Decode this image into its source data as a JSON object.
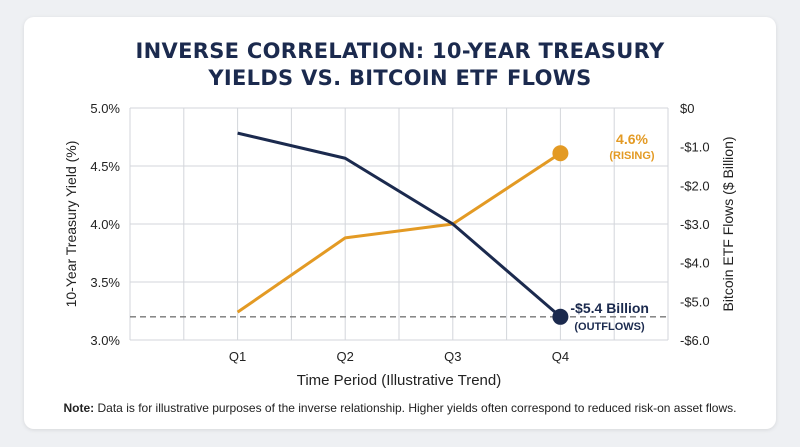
{
  "chart_data": {
    "type": "line",
    "title": [
      "INVERSE CORRELATION: 10-YEAR TREASURY",
      "YIELDS VS. BITCOIN ETF FLOWS"
    ],
    "xlabel": "Time Period (Illustrative Trend)",
    "ylabel_left": "10-Year Treasury Yield (%)",
    "ylabel_right": "Bitcoin ETF Flows ($ Billion)",
    "categories": [
      "Q1",
      "Q2",
      "Q3",
      "Q4"
    ],
    "y_left": {
      "min": 3.0,
      "max": 5.0,
      "ticks": [
        "5.0%",
        "4.5%",
        "4.0%",
        "3.5%",
        "3.0%"
      ]
    },
    "y_right": {
      "min": -6.0,
      "max": 0,
      "ticks": [
        "$0",
        "-$1.0",
        "-$2.0",
        "-$3.0",
        "-$4.0",
        "-$5.0",
        "-$6.0"
      ]
    },
    "series": [
      {
        "axis": "left",
        "color": "#e39a24",
        "x": [
          1,
          2,
          3,
          4
        ],
        "values": [
          3.24,
          3.88,
          4.0,
          4.61
        ]
      },
      {
        "axis": "right",
        "color": "#1b2a4e",
        "x": [
          1,
          2,
          3,
          4
        ],
        "values": [
          -0.65,
          -1.3,
          -3.0,
          -5.4
        ]
      }
    ],
    "reference_line": {
      "axis": "left",
      "value": 3.2,
      "style": "dashed",
      "color": "#777777"
    },
    "annotations": [
      {
        "series": 0,
        "text": "4.6%",
        "subtext": "(RISING)",
        "color": "#e39a24"
      },
      {
        "series": 1,
        "text": "-$5.4 Billion",
        "subtext": "(OUTFLOWS)",
        "color": "#1b2a4e"
      }
    ],
    "grid": true,
    "legend": "none"
  },
  "note": {
    "label": "Note:",
    "text": " Data is for illustrative purposes of the inverse relationship. Higher yields often correspond to reduced risk-on asset flows."
  }
}
